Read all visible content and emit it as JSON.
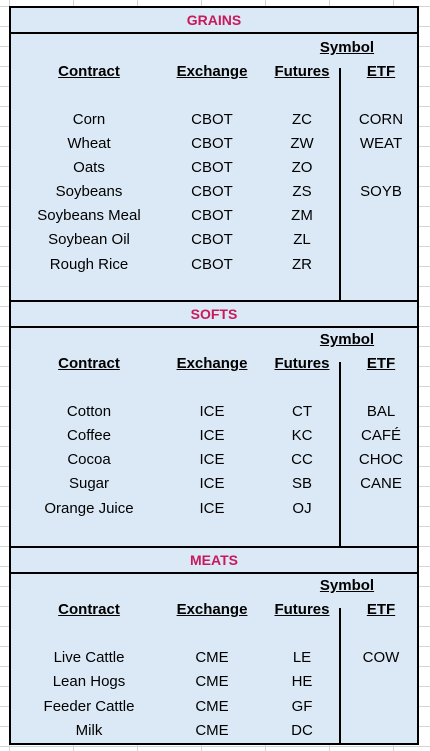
{
  "sections": [
    {
      "title": "GRAINS",
      "symbol_label": "Symbol",
      "headers": {
        "contract": "Contract",
        "exchange": "Exchange",
        "futures": "Futures",
        "etf": "ETF"
      },
      "rows": [
        {
          "contract": "Corn",
          "exchange": "CBOT",
          "futures": "ZC",
          "etf": "CORN"
        },
        {
          "contract": "Wheat",
          "exchange": "CBOT",
          "futures": "ZW",
          "etf": "WEAT"
        },
        {
          "contract": "Oats",
          "exchange": "CBOT",
          "futures": "ZO",
          "etf": ""
        },
        {
          "contract": "Soybeans",
          "exchange": "CBOT",
          "futures": "ZS",
          "etf": "SOYB"
        },
        {
          "contract": "Soybeans Meal",
          "exchange": "CBOT",
          "futures": "ZM",
          "etf": ""
        },
        {
          "contract": "Soybean Oil",
          "exchange": "CBOT",
          "futures": "ZL",
          "etf": ""
        },
        {
          "contract": "Rough Rice",
          "exchange": "CBOT",
          "futures": "ZR",
          "etf": ""
        }
      ]
    },
    {
      "title": "SOFTS",
      "symbol_label": "Symbol",
      "headers": {
        "contract": "Contract",
        "exchange": "Exchange",
        "futures": "Futures",
        "etf": "ETF"
      },
      "rows": [
        {
          "contract": "Cotton",
          "exchange": "ICE",
          "futures": "CT",
          "etf": "BAL"
        },
        {
          "contract": "Coffee",
          "exchange": "ICE",
          "futures": "KC",
          "etf": "CAFÉ"
        },
        {
          "contract": "Cocoa",
          "exchange": "ICE",
          "futures": "CC",
          "etf": "CHOC"
        },
        {
          "contract": "Sugar",
          "exchange": "ICE",
          "futures": "SB",
          "etf": "CANE"
        },
        {
          "contract": "Orange Juice",
          "exchange": "ICE",
          "futures": "OJ",
          "etf": ""
        }
      ]
    },
    {
      "title": "MEATS",
      "symbol_label": "Symbol",
      "headers": {
        "contract": "Contract",
        "exchange": "Exchange",
        "futures": "Futures",
        "etf": "ETF"
      },
      "rows": [
        {
          "contract": "Live Cattle",
          "exchange": "CME",
          "futures": "LE",
          "etf": "COW"
        },
        {
          "contract": "Lean Hogs",
          "exchange": "CME",
          "futures": "HE",
          "etf": ""
        },
        {
          "contract": "Feeder Cattle",
          "exchange": "CME",
          "futures": "GF",
          "etf": ""
        },
        {
          "contract": "Milk",
          "exchange": "CME",
          "futures": "DC",
          "etf": ""
        }
      ]
    }
  ]
}
